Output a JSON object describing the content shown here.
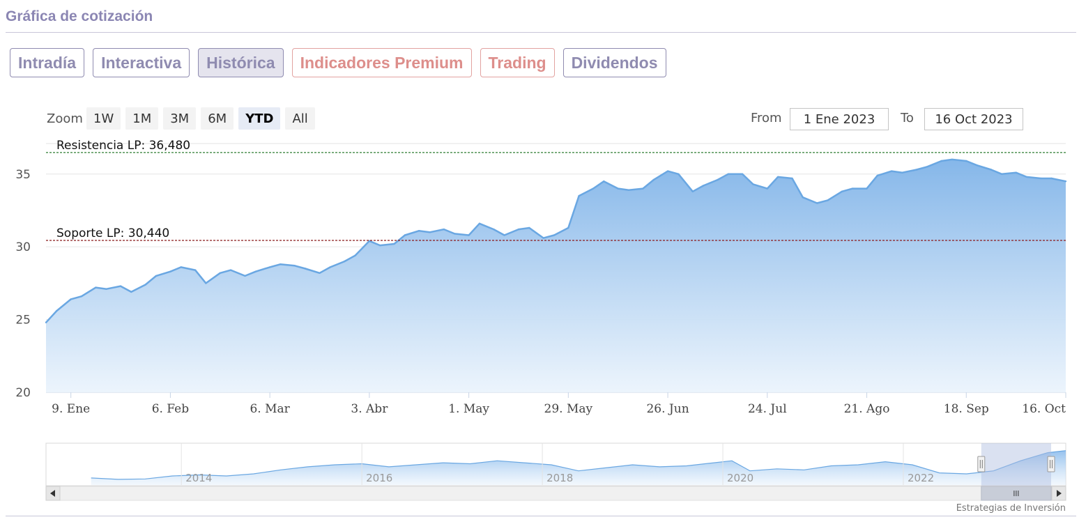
{
  "header": {
    "title": "Gráfica de cotización"
  },
  "tabs": [
    {
      "label": "Intradía",
      "variant": "normal"
    },
    {
      "label": "Interactiva",
      "variant": "normal"
    },
    {
      "label": "Histórica",
      "variant": "active"
    },
    {
      "label": "Indicadores Premium",
      "variant": "premium"
    },
    {
      "label": "Trading",
      "variant": "premium"
    },
    {
      "label": "Dividendos",
      "variant": "normal"
    }
  ],
  "zoom": {
    "label": "Zoom",
    "buttons": [
      "1W",
      "1M",
      "3M",
      "6M",
      "YTD",
      "All"
    ],
    "selected": "YTD"
  },
  "range": {
    "from_label": "From",
    "from_value": "1 Ene 2023",
    "to_label": "To",
    "to_value": "16 Oct 2023"
  },
  "credit": "Estrategias de Inversión",
  "colors": {
    "accent": "#8f8bb0",
    "premium": "#dd8e8b",
    "series_line": "#6aa7e2",
    "series_fill_top": "#8bbbec",
    "resistance_line": "#2e7d32",
    "support_line": "#8b1a1a"
  },
  "chart_data": {
    "type": "area",
    "x": [
      "2023-01-02",
      "2023-01-05",
      "2023-01-09",
      "2023-01-12",
      "2023-01-16",
      "2023-01-19",
      "2023-01-23",
      "2023-01-26",
      "2023-01-30",
      "2023-02-02",
      "2023-02-06",
      "2023-02-09",
      "2023-02-13",
      "2023-02-16",
      "2023-02-20",
      "2023-02-23",
      "2023-02-27",
      "2023-03-02",
      "2023-03-06",
      "2023-03-09",
      "2023-03-13",
      "2023-03-16",
      "2023-03-20",
      "2023-03-23",
      "2023-03-27",
      "2023-03-30",
      "2023-04-03",
      "2023-04-06",
      "2023-04-10",
      "2023-04-13",
      "2023-04-17",
      "2023-04-20",
      "2023-04-24",
      "2023-04-27",
      "2023-05-01",
      "2023-05-04",
      "2023-05-08",
      "2023-05-11",
      "2023-05-15",
      "2023-05-18",
      "2023-05-22",
      "2023-05-25",
      "2023-05-29",
      "2023-06-01",
      "2023-06-05",
      "2023-06-08",
      "2023-06-12",
      "2023-06-15",
      "2023-06-19",
      "2023-06-22",
      "2023-06-26",
      "2023-06-29",
      "2023-07-03",
      "2023-07-06",
      "2023-07-10",
      "2023-07-13",
      "2023-07-17",
      "2023-07-20",
      "2023-07-24",
      "2023-07-27",
      "2023-07-31",
      "2023-08-03",
      "2023-08-07",
      "2023-08-10",
      "2023-08-14",
      "2023-08-17",
      "2023-08-21",
      "2023-08-24",
      "2023-08-28",
      "2023-08-31",
      "2023-09-04",
      "2023-09-07",
      "2023-09-11",
      "2023-09-14",
      "2023-09-18",
      "2023-09-21",
      "2023-09-25",
      "2023-09-28",
      "2023-10-02",
      "2023-10-05",
      "2023-10-09",
      "2023-10-12",
      "2023-10-16"
    ],
    "y": [
      24.8,
      25.6,
      26.4,
      26.6,
      27.2,
      27.1,
      27.3,
      26.9,
      27.4,
      28.0,
      28.3,
      28.6,
      28.4,
      27.5,
      28.2,
      28.4,
      28.0,
      28.3,
      28.6,
      28.8,
      28.7,
      28.5,
      28.2,
      28.6,
      29.0,
      29.4,
      30.4,
      30.1,
      30.2,
      30.8,
      31.1,
      31.0,
      31.2,
      30.9,
      30.8,
      31.6,
      31.2,
      30.8,
      31.2,
      31.3,
      30.6,
      30.8,
      31.3,
      33.5,
      34.0,
      34.5,
      34.0,
      33.9,
      34.0,
      34.6,
      35.2,
      35.0,
      33.8,
      34.2,
      34.6,
      35.0,
      35.0,
      34.3,
      34.0,
      34.8,
      34.7,
      33.4,
      33.0,
      33.2,
      33.8,
      34.0,
      34.0,
      34.9,
      35.2,
      35.1,
      35.3,
      35.5,
      35.9,
      36.0,
      35.9,
      35.6,
      35.3,
      35.0,
      35.1,
      34.8,
      34.7,
      34.7,
      34.5
    ],
    "xticks": [
      "9. Ene",
      "6. Feb",
      "6. Mar",
      "3. Abr",
      "1. May",
      "29. May",
      "26. Jun",
      "24. Jul",
      "21. Ago",
      "18. Sep",
      "16. Oct"
    ],
    "xtick_dates": [
      "2023-01-09",
      "2023-02-06",
      "2023-03-06",
      "2023-04-03",
      "2023-05-01",
      "2023-05-29",
      "2023-06-26",
      "2023-07-24",
      "2023-08-21",
      "2023-09-18",
      "2023-10-16"
    ],
    "yticks": [
      20,
      25,
      30,
      35
    ],
    "ylim": [
      20,
      37
    ],
    "xlim": [
      "2023-01-02",
      "2023-10-16"
    ],
    "grid": true,
    "legend": "none",
    "annotations": [
      {
        "label": "Resistencia LP: 36,480",
        "value": 36.48,
        "style": "dashed"
      },
      {
        "label": "Soporte LP: 30,440",
        "value": 30.44,
        "style": "dashed"
      }
    ],
    "navigator": {
      "xticks": [
        "2014",
        "2016",
        "2018",
        "2020",
        "2022"
      ],
      "x": [
        2013.0,
        2013.3,
        2013.6,
        2013.9,
        2014.2,
        2014.5,
        2014.8,
        2015.1,
        2015.4,
        2015.7,
        2016.0,
        2016.3,
        2016.6,
        2016.9,
        2017.2,
        2017.5,
        2017.8,
        2018.1,
        2018.4,
        2018.7,
        2019.0,
        2019.3,
        2019.6,
        2019.9,
        2020.1,
        2020.3,
        2020.6,
        2020.9,
        2021.2,
        2021.5,
        2021.8,
        2022.1,
        2022.4,
        2022.7,
        2023.0,
        2023.3,
        2023.6,
        2023.8
      ],
      "y": [
        21.5,
        20.8,
        21.0,
        22.5,
        23.0,
        22.5,
        23.5,
        25.5,
        27.0,
        28.0,
        28.5,
        27.0,
        28.0,
        29.0,
        28.5,
        30.0,
        29.0,
        28.0,
        25.0,
        26.5,
        28.0,
        27.0,
        27.5,
        29.0,
        30.0,
        25.0,
        26.0,
        25.5,
        27.5,
        28.0,
        29.5,
        28.0,
        24.0,
        23.5,
        25.0,
        30.0,
        34.0,
        35.0
      ],
      "ylim": [
        18,
        38
      ],
      "xlim": [
        2012.5,
        2023.8
      ],
      "selection": [
        "2023-01-02",
        "2023-10-16"
      ]
    }
  }
}
